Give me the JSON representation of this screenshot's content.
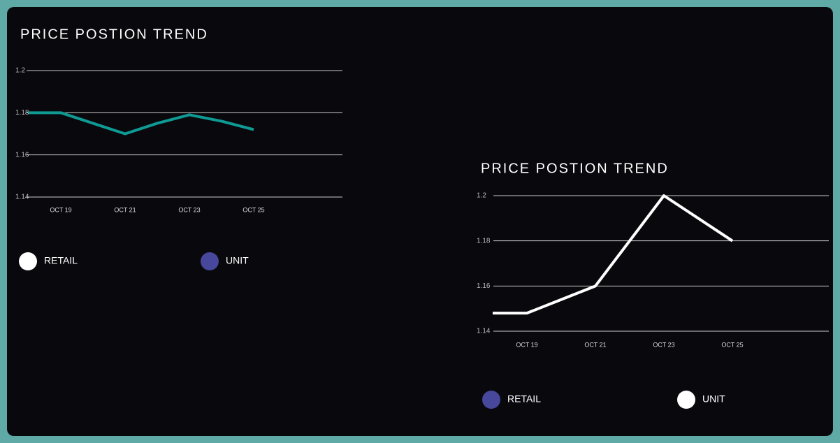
{
  "chart_data": [
    {
      "type": "line",
      "title": "PRICE POSTION TREND",
      "categories": [
        null,
        "OCT 19",
        null,
        "OCT 21",
        null,
        "OCT 23",
        null,
        "OCT 25"
      ],
      "values": [
        1.18,
        1.18,
        1.175,
        1.17,
        1.175,
        1.179,
        1.176,
        1.172
      ],
      "color": "#0f9a94",
      "ylim": [
        1.14,
        1.2
      ],
      "yticks": [
        1.14,
        1.16,
        1.18,
        1.2
      ],
      "grid": true,
      "legend": [
        {
          "name": "RETAIL",
          "color": "#ffffff"
        },
        {
          "name": "UNIT",
          "color": "#47479b"
        }
      ]
    },
    {
      "type": "line",
      "title": "PRICE POSTION TREND",
      "categories": [
        null,
        "OCT 19",
        null,
        "OCT 21",
        null,
        "OCT 23",
        null,
        "OCT 25"
      ],
      "values": [
        1.148,
        1.148,
        1.154,
        1.16,
        1.18,
        1.2,
        1.19,
        1.18
      ],
      "color": "#ffffff",
      "ylim": [
        1.14,
        1.2
      ],
      "yticks": [
        1.14,
        1.16,
        1.18,
        1.2
      ],
      "grid": true,
      "legend": [
        {
          "name": "RETAIL",
          "color": "#47479b"
        },
        {
          "name": "UNIT",
          "color": "#ffffff"
        }
      ]
    }
  ]
}
